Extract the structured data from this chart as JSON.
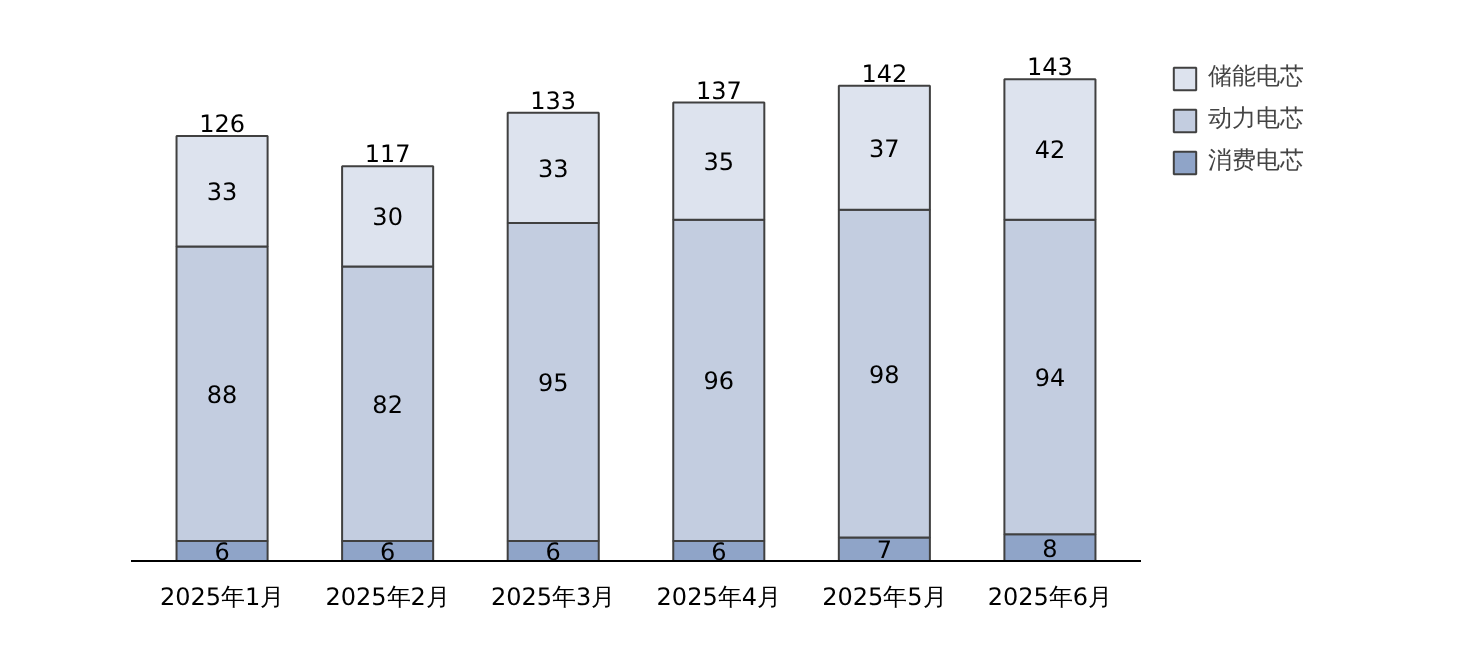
{
  "chart_data": {
    "type": "bar",
    "stacked": true,
    "categories": [
      "2025年1月",
      "2025年2月",
      "2025年3月",
      "2025年4月",
      "2025年5月",
      "2025年6月"
    ],
    "series": [
      {
        "name": "消费电芯",
        "color": "#8fa4c8",
        "values": [
          6,
          6,
          6,
          6,
          7,
          8
        ]
      },
      {
        "name": "动力电芯",
        "color": "#c3cde0",
        "values": [
          88,
          82,
          95,
          96,
          98,
          94
        ]
      },
      {
        "name": "储能电芯",
        "color": "#dde3ee",
        "values": [
          33,
          30,
          33,
          35,
          37,
          42
        ]
      }
    ],
    "totals": [
      "126",
      "117",
      "133",
      "137",
      "142",
      "143"
    ],
    "data_labels": true,
    "legend": "right",
    "grid": false
  }
}
